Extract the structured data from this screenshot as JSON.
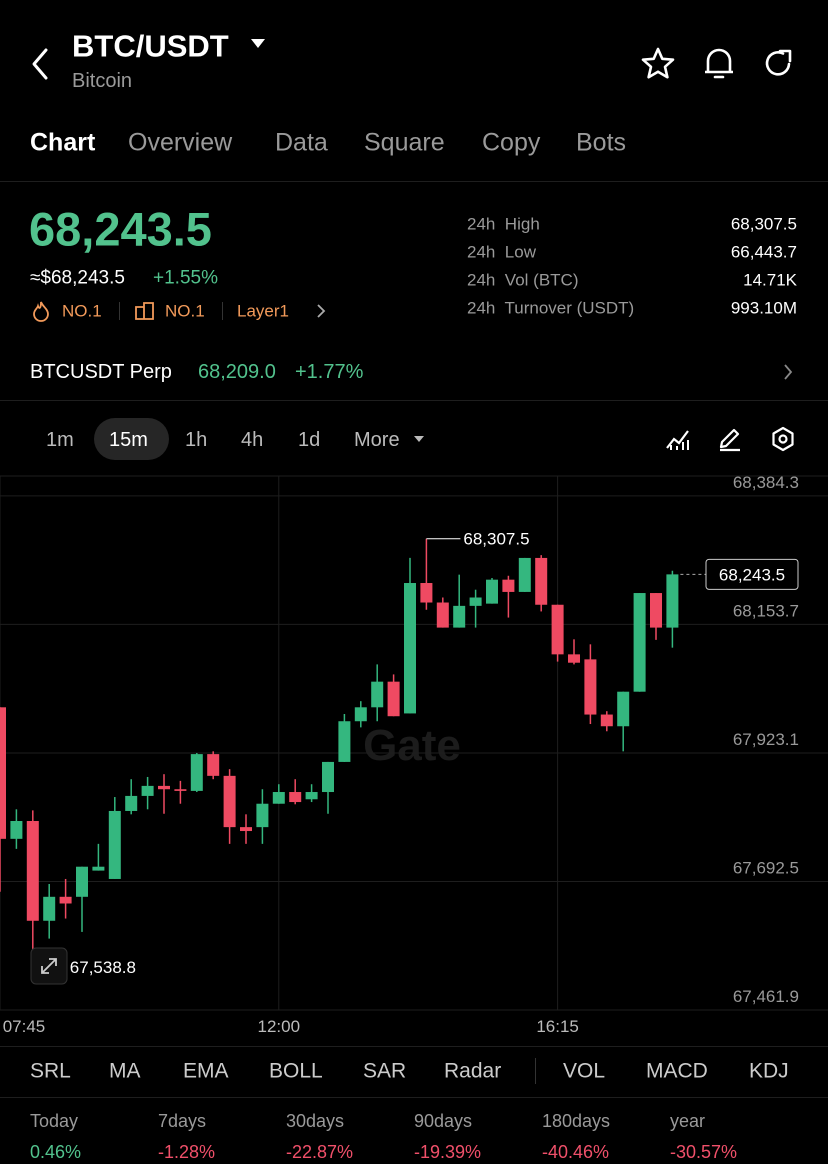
{
  "header": {
    "title": "BTC/USDT",
    "subtitle": "Bitcoin"
  },
  "tabs": [
    "Chart",
    "Overview",
    "Data",
    "Square",
    "Copy",
    "Bots"
  ],
  "price": {
    "last": "68,243.5",
    "usd": "≈$68,243.5",
    "change": "+1.55%"
  },
  "badges": [
    "NO.1",
    "NO.1",
    "Layer1"
  ],
  "stats": [
    {
      "label": "24h  High",
      "value": "68,307.5"
    },
    {
      "label": "24h  Low",
      "value": "66,443.7"
    },
    {
      "label": "24h  Vol (BTC)",
      "value": "14.71K"
    },
    {
      "label": "24h  Turnover (USDT)",
      "value": "993.10M"
    }
  ],
  "perp": {
    "name": "BTCUSDT Perp",
    "price": "68,209.0",
    "change": "+1.77%"
  },
  "intervals": [
    "1m",
    "15m",
    "1h",
    "4h",
    "1d",
    "More"
  ],
  "chart_data": {
    "type": "candlestick",
    "watermark": "Gate",
    "categories": [
      "07:45",
      null,
      null,
      null,
      null,
      null,
      null,
      null,
      null,
      null,
      null,
      null,
      null,
      null,
      null,
      null,
      null,
      "12:00",
      null,
      null,
      null,
      null,
      null,
      null,
      null,
      null,
      null,
      null,
      null,
      null,
      null,
      null,
      null,
      null,
      "16:15",
      null,
      null,
      null,
      null,
      null,
      null,
      null
    ],
    "open": [
      68005,
      67769,
      67801,
      67622,
      67665,
      67665,
      67712,
      67697,
      67819,
      67846,
      67864,
      67858,
      67855,
      67921,
      67882,
      67790,
      67790,
      67832,
      67853,
      67840,
      67853,
      67907,
      67980,
      68005,
      68051,
      67994,
      68228,
      68193,
      68148,
      68187,
      68191,
      68234,
      68212,
      68273,
      68189,
      68100,
      68091,
      67992,
      67971,
      68033,
      68210,
      68148
    ],
    "high": [
      68005,
      67822,
      67820,
      67688,
      67697,
      67719,
      67760,
      67844,
      67876,
      67880,
      67885,
      67873,
      67923,
      67926,
      67894,
      67813,
      67858,
      67867,
      67876,
      67867,
      67907,
      67993,
      68016,
      68082,
      68064,
      68273,
      68307.5,
      68202,
      68243,
      68216,
      68237,
      68241,
      68273,
      68278,
      68189,
      68127,
      68118,
      67998,
      68033,
      68210,
      68210,
      68250
    ],
    "low": [
      67674,
      67751,
      67538.8,
      67590,
      67626,
      67602,
      67712,
      67697,
      67813,
      67822,
      67814,
      67832,
      67853,
      67876,
      67760,
      67760,
      67760,
      67832,
      67831,
      67835,
      67814,
      67907,
      67969,
      67980,
      67989,
      67994,
      68180,
      68148,
      68148,
      68148,
      68191,
      68166,
      68212,
      68177,
      68087,
      68082,
      67975,
      67962,
      67926,
      68033,
      68126,
      68112
    ],
    "close": [
      67769,
      67801,
      67622,
      67665,
      67653,
      67719,
      67719,
      67819,
      67846,
      67864,
      67858,
      67855,
      67921,
      67882,
      67790,
      67783,
      67832,
      67853,
      67835,
      67853,
      67907,
      67980,
      68005,
      68051,
      67989,
      68228,
      68193,
      68148,
      68187,
      68202,
      68234,
      68212,
      68273,
      68189,
      68100,
      68085,
      67992,
      67971,
      68033,
      68210,
      68148,
      68243.5
    ],
    "up_color": "#34b77f",
    "down_color": "#ef4a62",
    "ylim": [
      67461.9,
      68420
    ],
    "yticks": [
      {
        "value": 67461.9,
        "label": "67,461.9"
      },
      {
        "value": 67692.5,
        "label": "67,692.5"
      },
      {
        "value": 67923.1,
        "label": "67,923.1"
      },
      {
        "value": 68153.7,
        "label": "68,153.7"
      },
      {
        "value": 68384.3,
        "label": "68,384.3"
      }
    ],
    "grid": true,
    "high_label": {
      "value": 68307.5,
      "label": "68,307.5"
    },
    "low_label": {
      "value": 67538.8,
      "label": "67,538.8"
    },
    "last_label": {
      "value": 68243.5,
      "label": "68,243.5"
    }
  },
  "indicators": [
    "SRL",
    "MA",
    "EMA",
    "BOLL",
    "SAR",
    "Radar",
    "VOL",
    "MACD",
    "KDJ"
  ],
  "performance": [
    {
      "label": "Today",
      "value": "0.46%"
    },
    {
      "label": "7days",
      "value": "-1.28%"
    },
    {
      "label": "30days",
      "value": "-22.87%"
    },
    {
      "label": "90days",
      "value": "-19.39%"
    },
    {
      "label": "180days",
      "value": "-40.46%"
    },
    {
      "label": "year",
      "value": "-30.57%"
    }
  ]
}
